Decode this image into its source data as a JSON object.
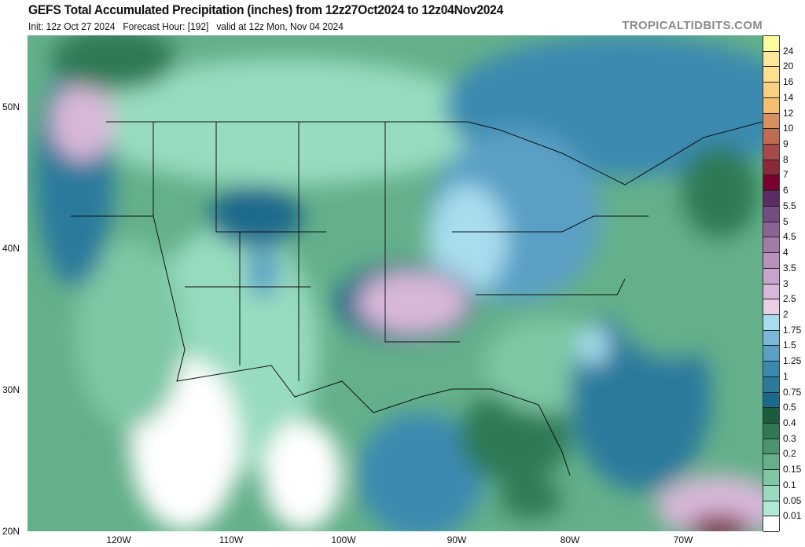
{
  "header": {
    "title": "GEFS Total Accumulated Precipitation (inches) from 12z27Oct2024 to 12z04Nov2024",
    "subtitle": "Init: 12z Oct 27 2024   Forecast Hour: [192]   valid at 12z Mon, Nov 04 2024",
    "brand": "TROPICALTIDBITS.COM"
  },
  "map": {
    "lat_labels": [
      "50N",
      "40N",
      "30N",
      "20N"
    ],
    "lon_labels": [
      "120W",
      "110W",
      "100W",
      "90W",
      "80W",
      "70W"
    ]
  },
  "colorbar": {
    "labels": [
      "24",
      "20",
      "16",
      "14",
      "12",
      "10",
      "9",
      "8",
      "7",
      "6",
      "5.5",
      "5",
      "4.5",
      "4",
      "3.5",
      "3",
      "2.5",
      "2",
      "1.75",
      "1.5",
      "1.25",
      "1",
      "0.75",
      "0.5",
      "0.4",
      "0.3",
      "0.2",
      "0.15",
      "0.1",
      "0.05",
      "0.01"
    ],
    "colors_top_to_bottom": [
      "#fffca0",
      "#fce89c",
      "#fbe090",
      "#f8d080",
      "#f4c070",
      "#d89060",
      "#c06a50",
      "#a84848",
      "#8c2838",
      "#7a0030",
      "#5c2c64",
      "#744c80",
      "#8c6494",
      "#a27ca8",
      "#b890bc",
      "#c8a4cc",
      "#d8b8d8",
      "#e8d0e6",
      "#a8dcef",
      "#7ab8d8",
      "#5aa0c4",
      "#3a8ab0",
      "#2a7a9c",
      "#1a6a8c",
      "#1a5c3c",
      "#2f7a55",
      "#4a9470",
      "#64b08a",
      "#7ec8a4",
      "#98dcc0",
      "#b0ead2",
      "#ffffff"
    ]
  }
}
